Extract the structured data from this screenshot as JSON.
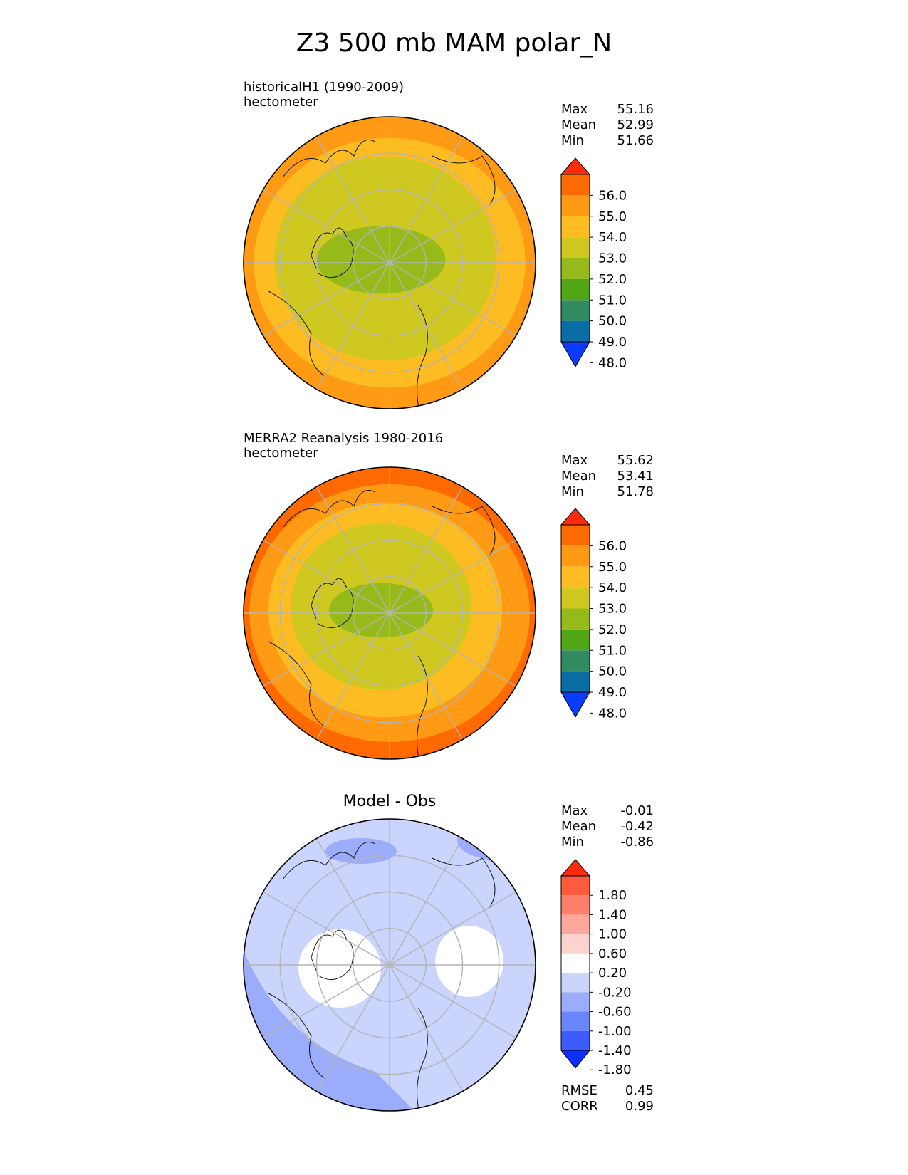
{
  "chart_data": [
    {
      "type": "heatmap",
      "projection": "polar stereographic (north)",
      "title": "Z3 500 mb MAM polar_N",
      "panel": "historicalH1 (1990-2009)",
      "units": "hectometer",
      "stats": {
        "labels": [
          "Max",
          "Mean",
          "Min"
        ],
        "values": [
          "55.16",
          "52.99",
          "51.66"
        ]
      },
      "colorbar": {
        "ticks": [
          "56.0",
          "55.0",
          "54.0",
          "53.0",
          "52.0",
          "51.0",
          "50.0",
          "49.0",
          "48.0"
        ],
        "colors": [
          "#ff2a0a",
          "#ff6a00",
          "#ff9a14",
          "#fdbd22",
          "#cfc821",
          "#97ba1b",
          "#52a616",
          "#338a60",
          "#0a6ea4",
          "#0a3cff"
        ]
      },
      "field_rings": [
        "#fdbd22",
        "#cfc821",
        "#97ba1b"
      ]
    },
    {
      "type": "heatmap",
      "projection": "polar stereographic (north)",
      "panel": "MERRA2 Reanalysis 1980-2016",
      "units": "hectometer",
      "stats": {
        "labels": [
          "Max",
          "Mean",
          "Min"
        ],
        "values": [
          "55.62",
          "53.41",
          "51.78"
        ]
      },
      "colorbar": {
        "ticks": [
          "56.0",
          "55.0",
          "54.0",
          "53.0",
          "52.0",
          "51.0",
          "50.0",
          "49.0",
          "48.0"
        ],
        "colors": [
          "#ff2a0a",
          "#ff6a00",
          "#ff9a14",
          "#fdbd22",
          "#cfc821",
          "#97ba1b",
          "#52a616",
          "#338a60",
          "#0a6ea4",
          "#0a3cff"
        ]
      },
      "field_rings": [
        "#ff9a14",
        "#fdbd22",
        "#cfc821",
        "#97ba1b"
      ]
    },
    {
      "type": "heatmap",
      "projection": "polar stereographic (north)",
      "panel": "Model - Obs",
      "stats": {
        "labels": [
          "Max",
          "Mean",
          "Min"
        ],
        "values": [
          "-0.01",
          "-0.42",
          "-0.86"
        ]
      },
      "colorbar": {
        "ticks": [
          "1.80",
          "1.40",
          "1.00",
          "0.60",
          "0.20",
          "-0.20",
          "-0.60",
          "-1.00",
          "-1.40",
          "-1.80"
        ],
        "colors": [
          "#ff2a0a",
          "#ff5a3c",
          "#ff7f6a",
          "#ffa79b",
          "#ffd3cd",
          "#ffffff",
          "#cbd4fc",
          "#9aacfa",
          "#6a85fa",
          "#3c5cff",
          "#0a30ff"
        ]
      },
      "metrics": {
        "labels": [
          "RMSE",
          "CORR"
        ],
        "values": [
          "0.45",
          "0.99"
        ]
      }
    }
  ]
}
